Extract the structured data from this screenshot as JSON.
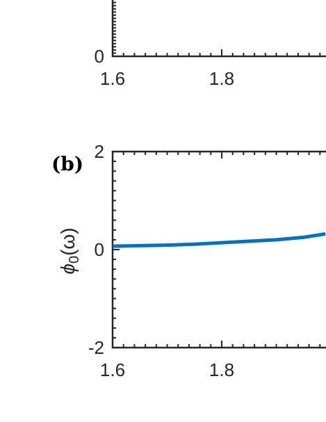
{
  "chart_data": [
    {
      "type": "line",
      "xlim": [
        1.6,
        2.0
      ],
      "xticks": [
        1.6,
        1.8
      ],
      "yticks": [
        0
      ]
    },
    {
      "type": "line",
      "panel_label": "(b)",
      "ylabel": {
        "symbol": "ϕ",
        "subscript": "0",
        "argument": "(ω)"
      },
      "xlim": [
        1.6,
        2.0
      ],
      "xticks": [
        1.6,
        1.8
      ],
      "ylim": [
        -2,
        2
      ],
      "yticks": [
        -2,
        0,
        2
      ],
      "x": [
        1.6,
        1.65,
        1.7,
        1.75,
        1.8,
        1.85,
        1.9,
        1.95,
        1.99
      ],
      "series": [
        {
          "color": "#0072bd",
          "values": [
            0.07,
            0.08,
            0.09,
            0.11,
            0.14,
            0.17,
            0.2,
            0.25,
            0.32
          ]
        }
      ]
    }
  ]
}
